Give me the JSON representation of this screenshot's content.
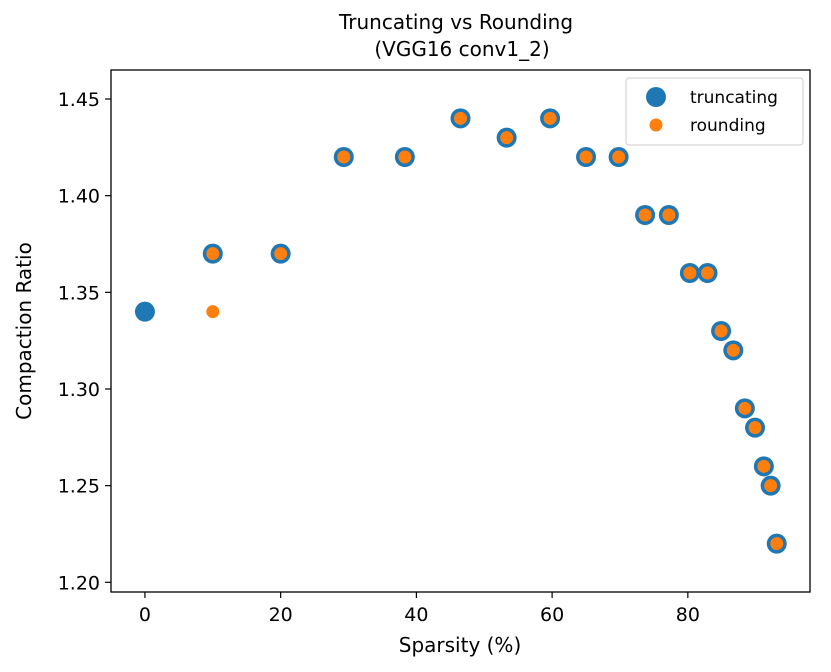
{
  "chart_data": {
    "type": "scatter",
    "title": "Truncating vs Rounding",
    "subtitle": "(VGG16 conv1_2)",
    "xlabel": "Sparsity (%)",
    "ylabel": "Compaction Ratio",
    "xlim": [
      -5,
      98
    ],
    "ylim": [
      1.195,
      1.465
    ],
    "xticks": [
      0,
      20,
      40,
      60,
      80
    ],
    "xtick_labels": [
      "0",
      "20",
      "40",
      "60",
      "80"
    ],
    "yticks": [
      1.2,
      1.25,
      1.3,
      1.35,
      1.4,
      1.45
    ],
    "ytick_labels": [
      "1.20",
      "1.25",
      "1.30",
      "1.35",
      "1.40",
      "1.45"
    ],
    "grid": false,
    "legend_position": "top-right",
    "series": [
      {
        "name": "truncating",
        "color": "#1f77b4",
        "marker": "large-circle",
        "x": [
          0,
          10,
          20,
          29.3,
          38.3,
          46.5,
          53.3,
          59.7,
          65,
          69.8,
          73.7,
          77.2,
          80.3,
          82.9,
          84.9,
          86.7,
          88.4,
          89.9,
          91.2,
          92.2,
          93.1
        ],
        "y": [
          1.34,
          1.37,
          1.37,
          1.42,
          1.42,
          1.44,
          1.43,
          1.44,
          1.42,
          1.42,
          1.39,
          1.39,
          1.36,
          1.36,
          1.33,
          1.32,
          1.29,
          1.28,
          1.26,
          1.25,
          1.22
        ]
      },
      {
        "name": "rounding",
        "color": "#ff7f0e",
        "marker": "small-circle",
        "x": [
          10,
          10,
          20,
          29.3,
          38.3,
          46.5,
          53.3,
          59.7,
          65,
          69.8,
          73.7,
          77.2,
          80.3,
          82.9,
          84.9,
          86.7,
          88.4,
          89.9,
          91.2,
          92.2,
          93.1
        ],
        "y": [
          1.34,
          1.37,
          1.37,
          1.42,
          1.42,
          1.44,
          1.43,
          1.44,
          1.42,
          1.42,
          1.39,
          1.39,
          1.36,
          1.36,
          1.33,
          1.32,
          1.29,
          1.28,
          1.26,
          1.25,
          1.22
        ]
      }
    ]
  }
}
